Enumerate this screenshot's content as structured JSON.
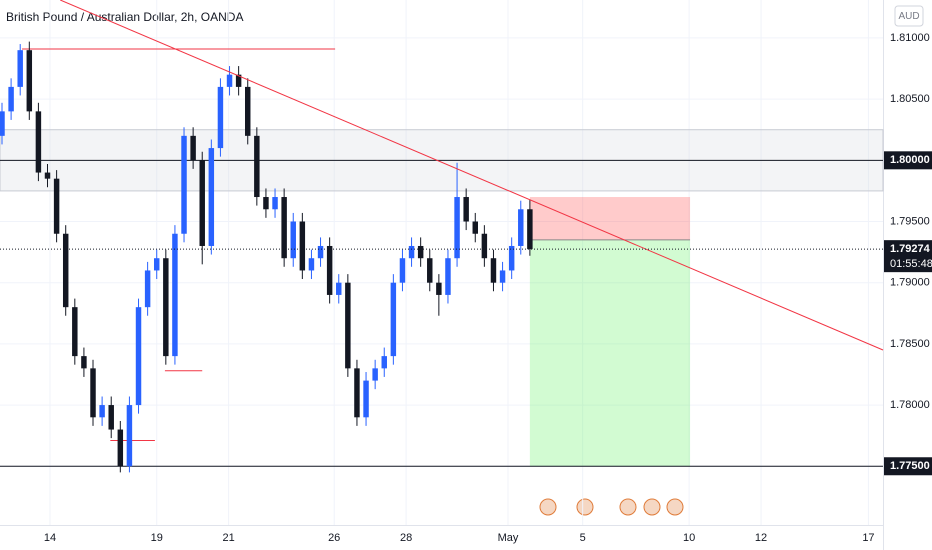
{
  "chart_data": {
    "type": "candlestick",
    "title": "British Pound / Australian Dollar, 2h, OANDA",
    "currency": "AUD",
    "up_color": "#2962ff",
    "down_color": "#131722",
    "open": [
      1.802,
      1.804,
      1.806,
      1.809,
      1.804,
      1.799,
      1.7985,
      1.794,
      1.788,
      1.784,
      1.783,
      1.779,
      1.78,
      1.778,
      1.775,
      1.78,
      1.788,
      1.791,
      1.792,
      1.784,
      1.794,
      1.802,
      1.8,
      1.793,
      1.801,
      1.806,
      1.807,
      1.806,
      1.802,
      1.797,
      1.796,
      1.797,
      1.792,
      1.795,
      1.791,
      1.792,
      1.793,
      1.789,
      1.79,
      1.783,
      1.779,
      1.782,
      1.783,
      1.784,
      1.79,
      1.792,
      1.793,
      1.792,
      1.79,
      1.789,
      1.792,
      1.797,
      1.795,
      1.794,
      1.792,
      1.79,
      1.791,
      1.793,
      1.796
    ],
    "high": [
      1.8047,
      1.8067,
      1.8095,
      1.8097,
      1.8047,
      1.7997,
      1.7992,
      1.7947,
      1.7887,
      1.7847,
      1.7837,
      1.7807,
      1.7807,
      1.7787,
      1.7807,
      1.7887,
      1.7917,
      1.7927,
      1.7927,
      1.7947,
      1.8027,
      1.8027,
      1.8007,
      1.8017,
      1.8067,
      1.8077,
      1.8077,
      1.8067,
      1.8027,
      1.7977,
      1.7977,
      1.7977,
      1.7957,
      1.7957,
      1.7927,
      1.7937,
      1.7937,
      1.7907,
      1.7907,
      1.7837,
      1.7827,
      1.7837,
      1.7847,
      1.7907,
      1.7927,
      1.7937,
      1.7937,
      1.7927,
      1.7907,
      1.7927,
      1.7998,
      1.7977,
      1.7957,
      1.7947,
      1.7927,
      1.7917,
      1.7937,
      1.7967,
      1.7968
    ],
    "low": [
      1.8013,
      1.8033,
      1.8053,
      1.8033,
      1.7983,
      1.7978,
      1.7933,
      1.7873,
      1.7833,
      1.7823,
      1.7783,
      1.7783,
      1.7773,
      1.7745,
      1.7745,
      1.7793,
      1.7873,
      1.7903,
      1.7833,
      1.7833,
      1.7933,
      1.7993,
      1.7915,
      1.7923,
      1.8003,
      1.8053,
      1.8053,
      1.8013,
      1.7963,
      1.7953,
      1.7953,
      1.7913,
      1.7913,
      1.7903,
      1.7903,
      1.7913,
      1.7883,
      1.7883,
      1.7823,
      1.7783,
      1.7783,
      1.7813,
      1.7823,
      1.7833,
      1.7893,
      1.7913,
      1.7913,
      1.7893,
      1.7873,
      1.7883,
      1.7913,
      1.7943,
      1.7933,
      1.7913,
      1.7893,
      1.7893,
      1.7903,
      1.7923,
      1.7922
    ],
    "close": [
      1.804,
      1.806,
      1.809,
      1.804,
      1.799,
      1.7985,
      1.794,
      1.788,
      1.784,
      1.783,
      1.779,
      1.78,
      1.778,
      1.775,
      1.78,
      1.788,
      1.791,
      1.792,
      1.784,
      1.794,
      1.802,
      1.8,
      1.793,
      1.801,
      1.806,
      1.807,
      1.806,
      1.802,
      1.797,
      1.796,
      1.797,
      1.792,
      1.795,
      1.791,
      1.792,
      1.793,
      1.789,
      1.79,
      1.783,
      1.779,
      1.782,
      1.783,
      1.784,
      1.79,
      1.792,
      1.793,
      1.792,
      1.79,
      1.789,
      1.792,
      1.797,
      1.795,
      1.794,
      1.792,
      1.79,
      1.791,
      1.793,
      1.796,
      1.79274
    ],
    "xlim": [
      -0.22,
      96.8
    ],
    "xticks": [
      {
        "value": 5.27,
        "label": "14"
      },
      {
        "value": 17.0,
        "label": "19"
      },
      {
        "value": 24.9,
        "label": "21"
      },
      {
        "value": 36.5,
        "label": "26"
      },
      {
        "value": 44.4,
        "label": "28"
      },
      {
        "value": 55.6,
        "label": "May"
      },
      {
        "value": 63.8,
        "label": "5"
      },
      {
        "value": 75.5,
        "label": "10"
      },
      {
        "value": 83.4,
        "label": "12"
      },
      {
        "value": 95.2,
        "label": "17"
      }
    ],
    "ylim": [
      1.7702,
      1.8131
    ],
    "yticks": [
      {
        "value": 1.81,
        "label": "1.81000"
      },
      {
        "value": 1.805,
        "label": "1.80500"
      },
      {
        "value": 1.8,
        "label": "1.80000"
      },
      {
        "value": 1.795,
        "label": "1.79500"
      },
      {
        "value": 1.79,
        "label": "1.79000"
      },
      {
        "value": 1.785,
        "label": "1.78500"
      },
      {
        "value": 1.78,
        "label": "1.78000"
      },
      {
        "value": 1.775,
        "label": "1.77500"
      }
    ],
    "levels": [
      1.8,
      1.775
    ],
    "zone": [
      1.7975,
      1.8025
    ],
    "trendline": {
      "x": [
        6.4,
        96.8
      ],
      "y": [
        1.8131,
        1.7845
      ]
    },
    "segments": [
      {
        "x": [
          2.2,
          36.6
        ],
        "y": 1.8091
      },
      {
        "x": [
          17.9,
          22.0
        ],
        "y": 1.7828
      },
      {
        "x": [
          11.9,
          16.8
        ],
        "y": 1.7771
      }
    ],
    "position": {
      "x": [
        58.0,
        75.6
      ],
      "stop": 1.797,
      "entry": 1.7935,
      "target": 1.775
    },
    "last_price": {
      "value": 1.79274,
      "label": "1.79274"
    },
    "countdown": "01:55:48"
  }
}
